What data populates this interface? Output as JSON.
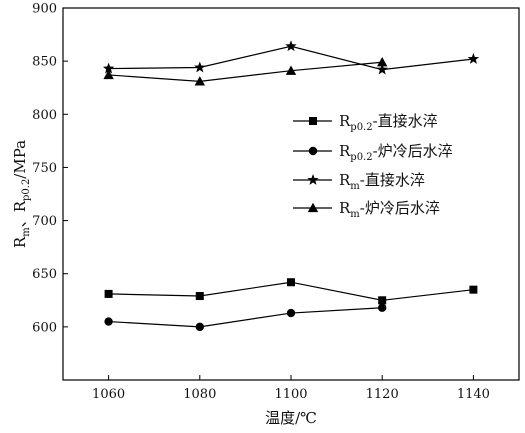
{
  "chart_data": {
    "type": "line",
    "xlabel": "温度/℃",
    "ylabel": {
      "base_1": "R",
      "sub_1": "m",
      "sep": "、",
      "base_2": "R",
      "sub_2": "p0.2",
      "unit": "/MPa"
    },
    "xlim": [
      1050,
      1150
    ],
    "ylim": [
      550,
      900
    ],
    "xticks": [
      1060,
      1080,
      1100,
      1120,
      1140
    ],
    "yticks": [
      600,
      650,
      700,
      750,
      800,
      850,
      900
    ],
    "grid": false,
    "legend_position": "right",
    "series": [
      {
        "name": "Rp0.2-直接水淬",
        "label": {
          "base": "R",
          "sub": "p0.2",
          "rest": "-直接水淬"
        },
        "marker": "square",
        "x": [
          1060,
          1080,
          1100,
          1120,
          1140
        ],
        "values": [
          631,
          629,
          642,
          625,
          635
        ]
      },
      {
        "name": "Rp0.2-炉冷后水淬",
        "label": {
          "base": "R",
          "sub": "p0.2",
          "rest": "-炉冷后水淬"
        },
        "marker": "circle",
        "x": [
          1060,
          1080,
          1100,
          1120
        ],
        "values": [
          605,
          600,
          613,
          618
        ]
      },
      {
        "name": "Rm-直接水淬",
        "label": {
          "base": "R",
          "sub": "m",
          "rest": "-直接水淬"
        },
        "marker": "star",
        "x": [
          1060,
          1080,
          1100,
          1120,
          1140
        ],
        "values": [
          843,
          844,
          864,
          842,
          852
        ]
      },
      {
        "name": "Rm-炉冷后水淬",
        "label": {
          "base": "R",
          "sub": "m",
          "rest": "-炉冷后水淬"
        },
        "marker": "triangle",
        "x": [
          1060,
          1080,
          1100,
          1120
        ],
        "values": [
          837,
          831,
          841,
          849
        ]
      }
    ]
  }
}
